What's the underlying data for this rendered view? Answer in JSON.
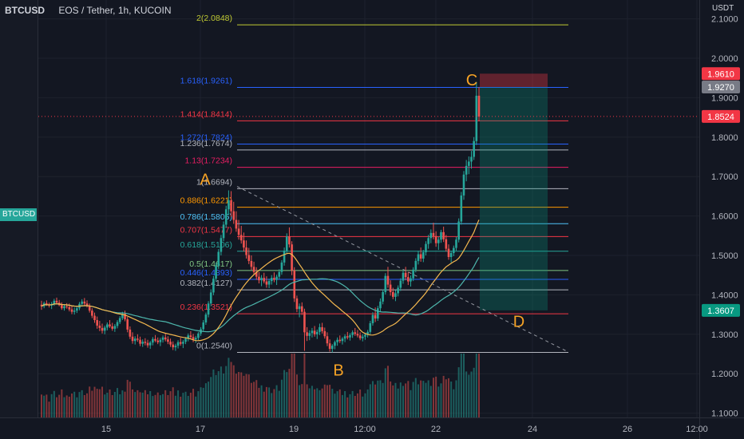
{
  "header": {
    "left_symbol": "BTCUSD",
    "title": "EOS / Tether, 1h, KUCOIN"
  },
  "left_badge": "BTCUSD",
  "chart_data": {
    "type": "candlestick",
    "title": "EOS / Tether, 1h, KUCOIN",
    "y_unit": "USDT",
    "ylim": [
      1.09,
      2.19
    ],
    "y_ticks": [
      "2.1000",
      "2.0000",
      "1.9000",
      "1.8000",
      "1.7000",
      "1.6000",
      "1.5000",
      "1.4000",
      "1.3000",
      "1.2000",
      "1.1000"
    ],
    "x_ticks": [
      "15",
      "17",
      "19",
      "12:00",
      "22",
      "24",
      "26",
      "12:00"
    ],
    "price_labels": [
      {
        "text": "1.9610",
        "value": 1.961,
        "color": "#f23645"
      },
      {
        "text": "1.9270",
        "value": 1.927,
        "color": "#787b86"
      },
      {
        "text": "1.8524",
        "value": 1.8524,
        "color": "#f23645"
      },
      {
        "text": "1.3607",
        "value": 1.3607,
        "color": "#089981"
      }
    ],
    "fib_levels": [
      {
        "label": "2(2.0848)",
        "value": 2.0848,
        "color": "#c0ca33"
      },
      {
        "label": "1.618(1.9261)",
        "value": 1.9261,
        "color": "#2962ff"
      },
      {
        "label": "1.414(1.8414)",
        "value": 1.8414,
        "color": "#f23645"
      },
      {
        "label": "1.272(1.7824)",
        "value": 1.7824,
        "color": "#2962ff"
      },
      {
        "label": "1.236(1.7674)",
        "value": 1.7674,
        "color": "#b2b5be"
      },
      {
        "label": "1.13(1.7234)",
        "value": 1.7234,
        "color": "#e91e63"
      },
      {
        "label": "1(1.6694)",
        "value": 1.6694,
        "color": "#b2b5be"
      },
      {
        "label": "0.886(1.6221)",
        "value": 1.6221,
        "color": "#ff9800"
      },
      {
        "label": "0.786(1.5805)",
        "value": 1.5805,
        "color": "#4fc3f7"
      },
      {
        "label": "0.707(1.5477)",
        "value": 1.5477,
        "color": "#f23645"
      },
      {
        "label": "0.618(1.5106)",
        "value": 1.5106,
        "color": "#26a69a"
      },
      {
        "label": "0.5(1.4617)",
        "value": 1.4617,
        "color": "#81c784"
      },
      {
        "label": "0.446(1.4393)",
        "value": 1.4393,
        "color": "#2962ff"
      },
      {
        "label": "0.382(1.4127)",
        "value": 1.4127,
        "color": "#b2b5be"
      },
      {
        "label": "0.236(1.3521)",
        "value": 1.3521,
        "color": "#f23645"
      },
      {
        "label": "0(1.2540)",
        "value": 1.254,
        "color": "#b2b5be"
      }
    ],
    "annotations": [
      {
        "text": "A",
        "value": 1.695,
        "color": "#f7a325"
      },
      {
        "text": "B",
        "value": 1.212,
        "color": "#f7a325"
      },
      {
        "text": "C",
        "value": 1.947,
        "color": "#f7a325"
      },
      {
        "text": "D",
        "value": 1.335,
        "color": "#f7a325"
      }
    ],
    "position": {
      "entry": 1.927,
      "stop": 1.961,
      "target": 1.3607
    },
    "colors": {
      "up": "#26a69a",
      "down": "#ef5350",
      "ma_fast": "#f6b94f",
      "ma_slow": "#4db6ac",
      "grid": "#1e222d",
      "text": "#b2b5be"
    },
    "candles": [
      [
        1.375,
        1.385,
        1.362,
        1.371
      ],
      [
        1.371,
        1.383,
        1.366,
        1.379
      ],
      [
        1.379,
        1.386,
        1.372,
        1.375
      ],
      [
        1.375,
        1.38,
        1.368,
        1.373
      ],
      [
        1.373,
        1.382,
        1.364,
        1.377
      ],
      [
        1.377,
        1.39,
        1.372,
        1.385
      ],
      [
        1.385,
        1.393,
        1.376,
        1.38
      ],
      [
        1.38,
        1.387,
        1.371,
        1.374
      ],
      [
        1.374,
        1.381,
        1.362,
        1.366
      ],
      [
        1.366,
        1.376,
        1.36,
        1.371
      ],
      [
        1.371,
        1.379,
        1.365,
        1.369
      ],
      [
        1.369,
        1.378,
        1.358,
        1.363
      ],
      [
        1.363,
        1.371,
        1.351,
        1.357
      ],
      [
        1.357,
        1.368,
        1.35,
        1.36
      ],
      [
        1.36,
        1.372,
        1.354,
        1.366
      ],
      [
        1.366,
        1.382,
        1.361,
        1.377
      ],
      [
        1.377,
        1.389,
        1.37,
        1.383
      ],
      [
        1.383,
        1.392,
        1.372,
        1.378
      ],
      [
        1.378,
        1.386,
        1.368,
        1.372
      ],
      [
        1.372,
        1.378,
        1.355,
        1.36
      ],
      [
        1.36,
        1.366,
        1.341,
        1.347
      ],
      [
        1.347,
        1.355,
        1.329,
        1.336
      ],
      [
        1.336,
        1.345,
        1.314,
        1.322
      ],
      [
        1.322,
        1.334,
        1.308,
        1.316
      ],
      [
        1.316,
        1.327,
        1.302,
        1.309
      ],
      [
        1.309,
        1.322,
        1.3,
        1.317
      ],
      [
        1.317,
        1.33,
        1.31,
        1.325
      ],
      [
        1.325,
        1.336,
        1.316,
        1.32
      ],
      [
        1.32,
        1.329,
        1.309,
        1.314
      ],
      [
        1.314,
        1.326,
        1.306,
        1.321
      ],
      [
        1.321,
        1.336,
        1.315,
        1.331
      ],
      [
        1.331,
        1.346,
        1.326,
        1.341
      ],
      [
        1.341,
        1.357,
        1.336,
        1.352
      ],
      [
        1.352,
        1.36,
        1.333,
        1.338
      ],
      [
        1.338,
        1.344,
        1.305,
        1.312
      ],
      [
        1.312,
        1.32,
        1.288,
        1.294
      ],
      [
        1.294,
        1.305,
        1.276,
        1.283
      ],
      [
        1.283,
        1.295,
        1.274,
        1.289
      ],
      [
        1.289,
        1.3,
        1.281,
        1.286
      ],
      [
        1.286,
        1.294,
        1.27,
        1.276
      ],
      [
        1.276,
        1.287,
        1.268,
        1.281
      ],
      [
        1.281,
        1.29,
        1.272,
        1.278
      ],
      [
        1.278,
        1.286,
        1.266,
        1.272
      ],
      [
        1.272,
        1.283,
        1.263,
        1.279
      ],
      [
        1.279,
        1.293,
        1.272,
        1.288
      ],
      [
        1.288,
        1.298,
        1.28,
        1.284
      ],
      [
        1.284,
        1.292,
        1.275,
        1.28
      ],
      [
        1.28,
        1.291,
        1.27,
        1.286
      ],
      [
        1.286,
        1.297,
        1.279,
        1.292
      ],
      [
        1.292,
        1.301,
        1.282,
        1.287
      ],
      [
        1.287,
        1.295,
        1.275,
        1.281
      ],
      [
        1.281,
        1.289,
        1.268,
        1.274
      ],
      [
        1.274,
        1.282,
        1.26,
        1.267
      ],
      [
        1.267,
        1.276,
        1.258,
        1.271
      ],
      [
        1.271,
        1.285,
        1.264,
        1.28
      ],
      [
        1.28,
        1.291,
        1.271,
        1.276
      ],
      [
        1.276,
        1.286,
        1.265,
        1.281
      ],
      [
        1.281,
        1.293,
        1.275,
        1.289
      ],
      [
        1.289,
        1.302,
        1.282,
        1.297
      ],
      [
        1.297,
        1.308,
        1.288,
        1.293
      ],
      [
        1.293,
        1.301,
        1.28,
        1.287
      ],
      [
        1.287,
        1.296,
        1.278,
        1.291
      ],
      [
        1.291,
        1.306,
        1.285,
        1.302
      ],
      [
        1.302,
        1.318,
        1.296,
        1.313
      ],
      [
        1.313,
        1.336,
        1.307,
        1.33
      ],
      [
        1.33,
        1.355,
        1.324,
        1.35
      ],
      [
        1.35,
        1.384,
        1.343,
        1.378
      ],
      [
        1.378,
        1.414,
        1.371,
        1.406
      ],
      [
        1.406,
        1.448,
        1.399,
        1.441
      ],
      [
        1.441,
        1.482,
        1.433,
        1.474
      ],
      [
        1.474,
        1.516,
        1.466,
        1.509
      ],
      [
        1.509,
        1.552,
        1.5,
        1.544
      ],
      [
        1.544,
        1.586,
        1.536,
        1.578
      ],
      [
        1.578,
        1.626,
        1.57,
        1.617
      ],
      [
        1.617,
        1.665,
        1.602,
        1.64
      ],
      [
        1.64,
        1.663,
        1.598,
        1.612
      ],
      [
        1.612,
        1.636,
        1.58,
        1.59
      ],
      [
        1.59,
        1.612,
        1.56,
        1.568
      ],
      [
        1.568,
        1.59,
        1.54,
        1.552
      ],
      [
        1.552,
        1.575,
        1.53,
        1.538
      ],
      [
        1.538,
        1.558,
        1.51,
        1.52
      ],
      [
        1.52,
        1.538,
        1.492,
        1.501
      ],
      [
        1.501,
        1.519,
        1.478,
        1.486
      ],
      [
        1.486,
        1.5,
        1.463,
        1.471
      ],
      [
        1.471,
        1.484,
        1.45,
        1.458
      ],
      [
        1.458,
        1.47,
        1.438,
        1.446
      ],
      [
        1.446,
        1.458,
        1.429,
        1.437
      ],
      [
        1.437,
        1.45,
        1.422,
        1.443
      ],
      [
        1.443,
        1.456,
        1.429,
        1.434
      ],
      [
        1.434,
        1.447,
        1.418,
        1.426
      ],
      [
        1.426,
        1.441,
        1.417,
        1.435
      ],
      [
        1.435,
        1.45,
        1.426,
        1.443
      ],
      [
        1.443,
        1.457,
        1.432,
        1.438
      ],
      [
        1.438,
        1.451,
        1.425,
        1.446
      ],
      [
        1.446,
        1.465,
        1.439,
        1.458
      ],
      [
        1.458,
        1.488,
        1.451,
        1.482
      ],
      [
        1.482,
        1.52,
        1.474,
        1.512
      ],
      [
        1.512,
        1.556,
        1.505,
        1.548
      ],
      [
        1.548,
        1.571,
        1.52,
        1.528
      ],
      [
        1.528,
        1.536,
        1.45,
        1.462
      ],
      [
        1.462,
        1.47,
        1.382,
        1.391
      ],
      [
        1.391,
        1.398,
        1.356,
        1.364
      ],
      [
        1.364,
        1.378,
        1.343,
        1.371
      ],
      [
        1.371,
        1.381,
        1.349,
        1.357
      ],
      [
        1.357,
        1.365,
        1.258,
        1.305
      ],
      [
        1.305,
        1.318,
        1.283,
        1.296
      ],
      [
        1.296,
        1.31,
        1.285,
        1.303
      ],
      [
        1.303,
        1.316,
        1.292,
        1.309
      ],
      [
        1.309,
        1.321,
        1.294,
        1.3
      ],
      [
        1.3,
        1.312,
        1.288,
        1.306
      ],
      [
        1.306,
        1.327,
        1.298,
        1.318
      ],
      [
        1.318,
        1.329,
        1.302,
        1.308
      ],
      [
        1.308,
        1.317,
        1.289,
        1.295
      ],
      [
        1.295,
        1.305,
        1.27,
        1.277
      ],
      [
        1.277,
        1.287,
        1.256,
        1.263
      ],
      [
        1.263,
        1.275,
        1.254,
        1.271
      ],
      [
        1.271,
        1.284,
        1.262,
        1.28
      ],
      [
        1.28,
        1.292,
        1.271,
        1.286
      ],
      [
        1.286,
        1.297,
        1.278,
        1.283
      ],
      [
        1.283,
        1.293,
        1.274,
        1.289
      ],
      [
        1.289,
        1.3,
        1.28,
        1.295
      ],
      [
        1.295,
        1.306,
        1.287,
        1.292
      ],
      [
        1.292,
        1.303,
        1.284,
        1.298
      ],
      [
        1.298,
        1.31,
        1.291,
        1.305
      ],
      [
        1.305,
        1.316,
        1.296,
        1.301
      ],
      [
        1.301,
        1.311,
        1.292,
        1.297
      ],
      [
        1.297,
        1.305,
        1.285,
        1.29
      ],
      [
        1.29,
        1.3,
        1.282,
        1.294
      ],
      [
        1.294,
        1.304,
        1.286,
        1.299
      ],
      [
        1.299,
        1.311,
        1.292,
        1.306
      ],
      [
        1.306,
        1.334,
        1.3,
        1.328
      ],
      [
        1.328,
        1.356,
        1.322,
        1.349
      ],
      [
        1.349,
        1.368,
        1.331,
        1.34
      ],
      [
        1.34,
        1.372,
        1.334,
        1.366
      ],
      [
        1.366,
        1.391,
        1.357,
        1.383
      ],
      [
        1.383,
        1.414,
        1.376,
        1.407
      ],
      [
        1.407,
        1.455,
        1.401,
        1.448
      ],
      [
        1.448,
        1.471,
        1.418,
        1.426
      ],
      [
        1.426,
        1.437,
        1.398,
        1.407
      ],
      [
        1.407,
        1.418,
        1.389,
        1.395
      ],
      [
        1.395,
        1.412,
        1.384,
        1.404
      ],
      [
        1.404,
        1.424,
        1.396,
        1.418
      ],
      [
        1.418,
        1.442,
        1.41,
        1.436
      ],
      [
        1.436,
        1.463,
        1.428,
        1.456
      ],
      [
        1.456,
        1.471,
        1.437,
        1.445
      ],
      [
        1.445,
        1.458,
        1.425,
        1.434
      ],
      [
        1.434,
        1.449,
        1.421,
        1.442
      ],
      [
        1.442,
        1.47,
        1.435,
        1.464
      ],
      [
        1.464,
        1.493,
        1.457,
        1.486
      ],
      [
        1.486,
        1.512,
        1.477,
        1.503
      ],
      [
        1.503,
        1.52,
        1.484,
        1.492
      ],
      [
        1.492,
        1.514,
        1.483,
        1.508
      ],
      [
        1.508,
        1.536,
        1.5,
        1.529
      ],
      [
        1.529,
        1.552,
        1.517,
        1.544
      ],
      [
        1.544,
        1.566,
        1.531,
        1.557
      ],
      [
        1.557,
        1.583,
        1.541,
        1.549
      ],
      [
        1.549,
        1.561,
        1.522,
        1.531
      ],
      [
        1.531,
        1.547,
        1.514,
        1.54
      ],
      [
        1.54,
        1.565,
        1.532,
        1.559
      ],
      [
        1.559,
        1.573,
        1.534,
        1.541
      ],
      [
        1.541,
        1.552,
        1.51,
        1.517
      ],
      [
        1.517,
        1.528,
        1.489,
        1.496
      ],
      [
        1.496,
        1.512,
        1.482,
        1.506
      ],
      [
        1.506,
        1.525,
        1.498,
        1.519
      ],
      [
        1.519,
        1.547,
        1.512,
        1.54
      ],
      [
        1.54,
        1.594,
        1.533,
        1.586
      ],
      [
        1.586,
        1.661,
        1.578,
        1.652
      ],
      [
        1.652,
        1.714,
        1.641,
        1.705
      ],
      [
        1.705,
        1.742,
        1.688,
        1.727
      ],
      [
        1.727,
        1.751,
        1.706,
        1.738
      ],
      [
        1.738,
        1.765,
        1.72,
        1.75
      ],
      [
        1.75,
        1.8,
        1.742,
        1.79
      ],
      [
        1.79,
        1.94,
        1.78,
        1.905
      ],
      [
        1.905,
        1.927,
        1.84,
        1.852
      ]
    ]
  }
}
